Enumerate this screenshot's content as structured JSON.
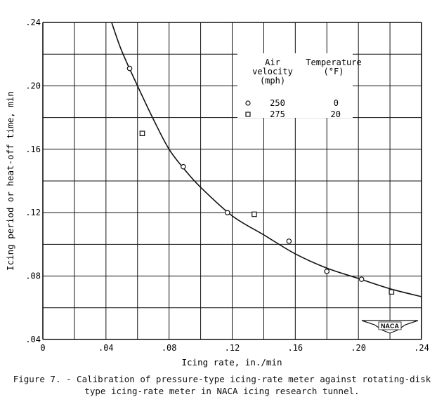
{
  "chart_data": {
    "type": "scatter",
    "xlabel": "Icing rate, in./min",
    "ylabel": "Icing period or heat-off time, min",
    "xlim": [
      0,
      0.24
    ],
    "ylim": [
      0.04,
      0.24
    ],
    "grid": true,
    "x_ticks": [
      "0",
      ".04",
      ".08",
      ".12",
      ".16",
      ".20",
      ".24"
    ],
    "y_ticks": [
      ".04",
      ".08",
      ".12",
      ".16",
      ".20",
      ".24"
    ],
    "legend": {
      "placement": "top-right",
      "col1_header": [
        "Air",
        "velocity",
        "(mph)"
      ],
      "col2_header": [
        "Temperature",
        "(°F)"
      ],
      "rows": [
        {
          "marker": "circle",
          "velocity": "250",
          "temperature": "0"
        },
        {
          "marker": "square",
          "velocity": "275",
          "temperature": "20"
        }
      ]
    },
    "series": [
      {
        "marker": "circle",
        "points": [
          [
            0.055,
            0.211
          ],
          [
            0.089,
            0.149
          ],
          [
            0.117,
            0.12
          ],
          [
            0.156,
            0.102
          ],
          [
            0.18,
            0.083
          ],
          [
            0.202,
            0.078
          ]
        ]
      },
      {
        "marker": "square",
        "points": [
          [
            0.063,
            0.17
          ],
          [
            0.134,
            0.119
          ],
          [
            0.221,
            0.07
          ]
        ]
      }
    ],
    "fit_curve": [
      [
        0.0436,
        0.24
      ],
      [
        0.05,
        0.222
      ],
      [
        0.06,
        0.2
      ],
      [
        0.07,
        0.179
      ],
      [
        0.08,
        0.16
      ],
      [
        0.09,
        0.147
      ],
      [
        0.1,
        0.136
      ],
      [
        0.12,
        0.118
      ],
      [
        0.14,
        0.106
      ],
      [
        0.16,
        0.094
      ],
      [
        0.18,
        0.085
      ],
      [
        0.2,
        0.0785
      ],
      [
        0.22,
        0.072
      ],
      [
        0.24,
        0.067
      ]
    ]
  },
  "logo_text": "NACA",
  "caption": {
    "line1": "Figure 7. - Calibration of pressure-type icing-rate meter against rotating-disk",
    "line2": "type icing-rate meter in NACA icing research tunnel."
  },
  "colors": {
    "ink": "#111111",
    "paper": "#ffffff"
  }
}
